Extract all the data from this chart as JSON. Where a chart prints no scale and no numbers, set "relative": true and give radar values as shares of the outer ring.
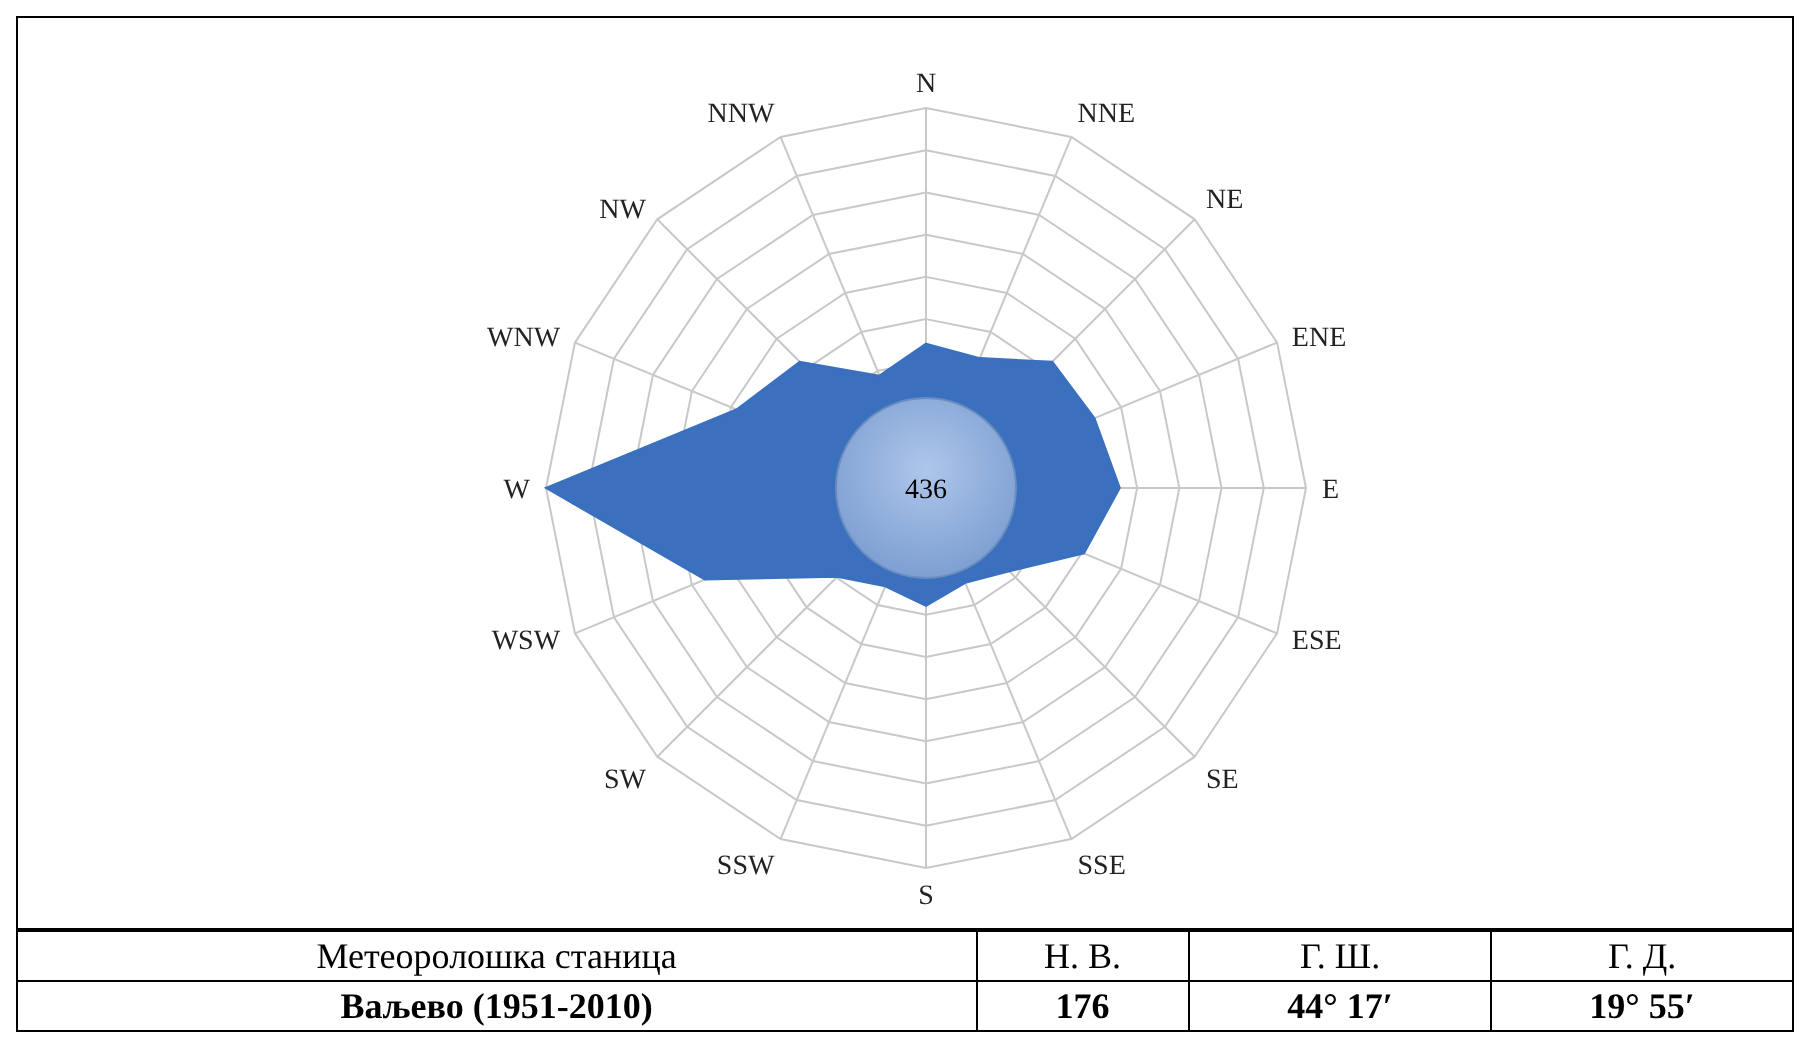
{
  "chart_data": {
    "type": "radar",
    "relative": true,
    "grid": true,
    "categories": [
      "N",
      "NNE",
      "NE",
      "ENE",
      "E",
      "ESE",
      "SE",
      "SSE",
      "S",
      "SSW",
      "SW",
      "WSW",
      "W",
      "WNW",
      "NW",
      "NNW"
    ],
    "series": [
      {
        "color": "#3a70bd",
        "values": [
          0.38,
          0.37,
          0.47,
          0.48,
          0.51,
          0.45,
          0.31,
          0.27,
          0.31,
          0.28,
          0.33,
          0.63,
          1,
          0.54,
          0.47,
          0.32
        ]
      }
    ],
    "annotations": [
      "436",
      "Метеоролошка станица",
      "Н. В.",
      "Г. Ш.",
      "Г. Д.",
      "Ваљево (1951-2010)",
      "176",
      "44° 17′",
      "19° 55′"
    ]
  }
}
